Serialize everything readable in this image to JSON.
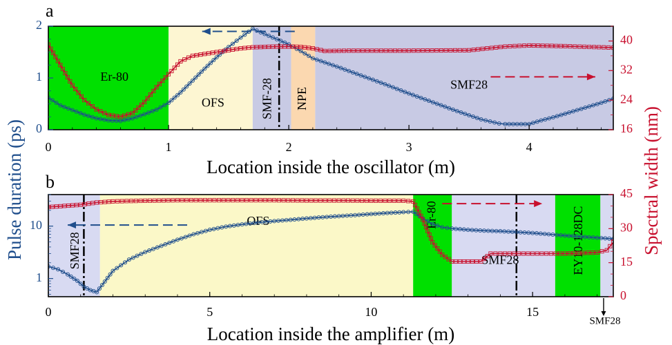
{
  "colors": {
    "blue": "#1f4e8c",
    "red": "#c8102e",
    "green": "#00e000",
    "cream": "#fdf6d2",
    "lavender": "#c8cae4",
    "lavender_light": "#d8daf2",
    "peach": "#fbd8b0",
    "yellow": "#fbf8c8"
  },
  "shared_ylabels": {
    "left": "Pulse duration (ps)",
    "right": "Spectral width (nm)"
  },
  "chart_data": [
    {
      "panel": "a",
      "type": "line",
      "xlabel": "Location inside the oscillator (m)",
      "xlim": [
        0,
        4.7
      ],
      "xticks": [
        "0",
        "1",
        "2",
        "3",
        "4"
      ],
      "left_axis": {
        "lim": [
          0,
          2
        ],
        "ticks": [
          "0",
          "1",
          "2"
        ]
      },
      "right_axis": {
        "lim": [
          16,
          44
        ],
        "ticks": [
          "16",
          "24",
          "32",
          "40"
        ]
      },
      "regions": [
        {
          "label": "Er-80",
          "x0": 0,
          "x1": 1.0,
          "fill": "green",
          "label_x": 0.55,
          "label_y": 1.0,
          "vertical": false
        },
        {
          "label": "OFS",
          "x0": 1.0,
          "x1": 1.7,
          "fill": "cream",
          "label_x": 1.37,
          "label_y": 0.5,
          "vertical": false
        },
        {
          "label": "SMF-28",
          "x0": 1.7,
          "x1": 2.02,
          "fill": "lavender",
          "label_x": 1.83,
          "label_y": 0.6,
          "vertical": true
        },
        {
          "label": "NPE",
          "x0": 2.02,
          "x1": 2.22,
          "fill": "peach",
          "label_x": 2.12,
          "label_y": 0.6,
          "vertical": true
        },
        {
          "label": "SMF28",
          "x0": 2.22,
          "x1": 4.7,
          "fill": "lavender",
          "label_x": 3.5,
          "label_y": 0.85,
          "vertical": false
        }
      ],
      "dashdot_x": [
        1.92
      ],
      "series": [
        {
          "axis": "left",
          "marker": "circle",
          "x": [
            0,
            0.1,
            0.2,
            0.3,
            0.4,
            0.5,
            0.6,
            0.7,
            0.8,
            0.9,
            1.0,
            1.1,
            1.2,
            1.3,
            1.4,
            1.5,
            1.6,
            1.7,
            1.8,
            1.9,
            2.0,
            2.1,
            2.2,
            2.4,
            2.6,
            2.8,
            3.0,
            3.2,
            3.4,
            3.6,
            3.75,
            3.8,
            3.9,
            4.0,
            4.1,
            4.2,
            4.3,
            4.4,
            4.5,
            4.6,
            4.7
          ],
          "y": [
            0.62,
            0.47,
            0.38,
            0.29,
            0.22,
            0.18,
            0.17,
            0.22,
            0.3,
            0.39,
            0.52,
            0.72,
            0.95,
            1.18,
            1.4,
            1.6,
            1.78,
            1.95,
            1.85,
            1.75,
            1.65,
            1.52,
            1.38,
            1.22,
            1.05,
            0.88,
            0.7,
            0.53,
            0.36,
            0.2,
            0.12,
            0.11,
            0.11,
            0.11,
            0.18,
            0.24,
            0.31,
            0.38,
            0.45,
            0.52,
            0.6
          ]
        },
        {
          "axis": "right",
          "marker": "square",
          "x": [
            0,
            0.1,
            0.2,
            0.3,
            0.4,
            0.5,
            0.6,
            0.7,
            0.8,
            0.9,
            1.0,
            1.1,
            1.2,
            1.3,
            1.4,
            1.5,
            1.6,
            1.7,
            1.8,
            1.9,
            2.0,
            2.1,
            2.2,
            2.3,
            2.5,
            3.0,
            3.5,
            3.8,
            4.0,
            4.3,
            4.5,
            4.7
          ],
          "y": [
            39.0,
            33.5,
            28.0,
            24.0,
            21.5,
            20.0,
            19.5,
            20.5,
            23.5,
            27.5,
            31.0,
            34.5,
            36.0,
            36.5,
            37.0,
            37.5,
            38.0,
            38.3,
            38.4,
            38.5,
            38.5,
            38.4,
            38.0,
            37.3,
            37.4,
            37.4,
            37.5,
            38.5,
            38.8,
            38.6,
            38.4,
            38.2
          ]
        }
      ],
      "arrows": [
        {
          "dir": "left",
          "axis": "left",
          "x_from": 2.05,
          "x_to": 1.28,
          "y": 1.9,
          "color": "blue"
        },
        {
          "dir": "right",
          "axis": "right",
          "x_from": 3.68,
          "x_to": 4.55,
          "y": 30.3,
          "color": "red"
        }
      ]
    },
    {
      "panel": "b",
      "type": "line",
      "xlabel": "Location inside the amplifier (m)",
      "xlim": [
        0,
        17.5
      ],
      "xticks": [
        "0",
        "5",
        "10",
        "15"
      ],
      "left_axis": {
        "log": true,
        "lim": [
          0.45,
          40
        ],
        "ticks": [
          "1",
          "10"
        ]
      },
      "right_axis": {
        "lim": [
          0,
          45
        ],
        "ticks": [
          "0",
          "15",
          "30",
          "45"
        ]
      },
      "regions": [
        {
          "label": "SMF28",
          "x0": 0,
          "x1": 1.6,
          "fill": "lavender_light",
          "label_x": 0.85,
          "label_y_frac": 0.55,
          "vertical": true
        },
        {
          "label": "OFS",
          "x0": 1.6,
          "x1": 11.3,
          "fill": "yellow",
          "label_x": 6.5,
          "label_y_frac": 0.27,
          "vertical": false
        },
        {
          "label": "Er-80",
          "x0": 11.3,
          "x1": 12.5,
          "fill": "green",
          "label_x": 11.9,
          "label_y_frac": 0.2,
          "vertical": true
        },
        {
          "label": "SMF28",
          "x0": 12.5,
          "x1": 15.7,
          "fill": "lavender_light",
          "label_x": 14.0,
          "label_y_frac": 0.65,
          "vertical": false
        },
        {
          "label": "EY10-128DC",
          "x0": 15.7,
          "x1": 17.1,
          "fill": "green",
          "label_x": 16.45,
          "label_y_frac": 0.45,
          "vertical": true
        },
        {
          "label": "",
          "x0": 17.1,
          "x1": 17.5,
          "fill": "lavender_light",
          "label_x": 17.3,
          "label_y_frac": 0.5,
          "vertical": false
        }
      ],
      "dashdot_x": [
        1.1,
        14.5
      ],
      "annotation": {
        "label": "SMF28",
        "x": 17.2
      },
      "series": [
        {
          "axis": "left",
          "marker": "circle",
          "x": [
            0,
            0.3,
            0.6,
            0.9,
            1.1,
            1.3,
            1.5,
            2.0,
            2.5,
            3.0,
            3.5,
            4.0,
            4.5,
            5.0,
            5.5,
            6.0,
            6.5,
            7.0,
            7.5,
            8.0,
            8.5,
            9.0,
            9.5,
            10.0,
            10.5,
            11.0,
            11.3,
            11.6,
            11.9,
            12.2,
            12.5,
            13.0,
            13.5,
            14.0,
            14.5,
            15.0,
            15.5,
            16.0,
            16.5,
            17.0,
            17.5
          ],
          "y": [
            1.7,
            1.5,
            1.2,
            0.9,
            0.7,
            0.6,
            0.55,
            1.4,
            2.3,
            3.2,
            4.2,
            5.5,
            7.0,
            8.5,
            9.8,
            10.8,
            11.7,
            12.5,
            13.2,
            14.0,
            14.8,
            15.5,
            16.2,
            17.0,
            17.8,
            18.5,
            18.8,
            14.0,
            11.0,
            9.5,
            9.0,
            8.5,
            8.2,
            8.0,
            7.7,
            7.4,
            7.0,
            6.6,
            6.3,
            6.0,
            5.7
          ]
        },
        {
          "axis": "right",
          "marker": "square",
          "x": [
            0,
            0.5,
            1.0,
            1.5,
            2.0,
            3.0,
            4.0,
            5.0,
            6.0,
            7.0,
            8.0,
            9.0,
            10.0,
            11.0,
            11.3,
            11.6,
            11.9,
            12.2,
            12.5,
            13.0,
            13.4,
            13.7,
            14.0,
            15.0,
            16.0,
            17.0,
            17.3,
            17.5
          ],
          "y": [
            39.5,
            40.0,
            40.5,
            41.5,
            42.0,
            42.3,
            42.5,
            42.5,
            42.5,
            42.5,
            42.4,
            42.4,
            42.3,
            42.3,
            42.0,
            34.0,
            24.0,
            18.5,
            15.5,
            15.5,
            15.5,
            19.0,
            19.0,
            19.0,
            19.0,
            19.5,
            20.5,
            24.0
          ]
        }
      ],
      "arrows": [
        {
          "dir": "left",
          "axis": "left",
          "x_from": 4.3,
          "x_to": 0.6,
          "y": 10.5,
          "color": "blue"
        },
        {
          "dir": "right",
          "axis": "right",
          "x_from": 12.2,
          "x_to": 15.3,
          "y": 41.0,
          "color": "red"
        }
      ]
    }
  ]
}
